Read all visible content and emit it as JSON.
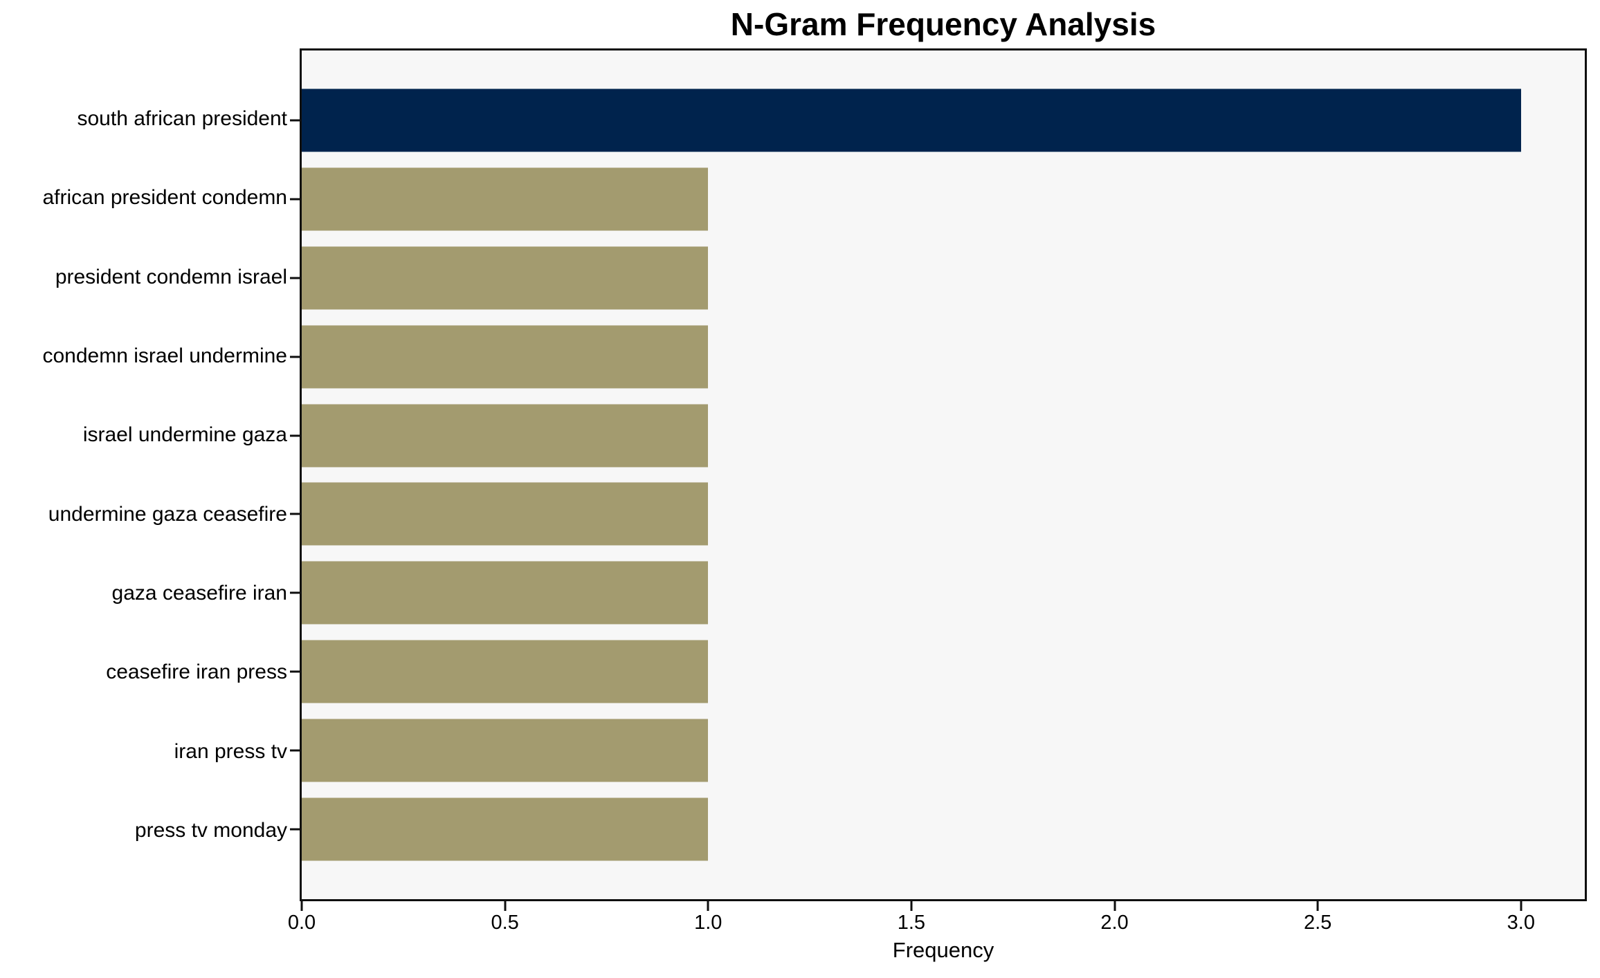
{
  "title": "N-Gram Frequency Analysis",
  "chart_data": {
    "type": "bar",
    "orientation": "horizontal",
    "title": "N-Gram Frequency Analysis",
    "categories": [
      "south african president",
      "african president condemn",
      "president condemn israel",
      "condemn israel undermine",
      "israel undermine gaza",
      "undermine gaza ceasefire",
      "gaza ceasefire iran",
      "ceasefire iran press",
      "iran press tv",
      "press tv monday"
    ],
    "values": [
      3,
      1,
      1,
      1,
      1,
      1,
      1,
      1,
      1,
      1
    ],
    "xlabel": "Frequency",
    "ylabel": "",
    "xlim": [
      0,
      3.157
    ],
    "x_ticks": [
      {
        "value": 0.0,
        "label": "0.0"
      },
      {
        "value": 0.5,
        "label": "0.5"
      },
      {
        "value": 1.0,
        "label": "1.0"
      },
      {
        "value": 1.5,
        "label": "1.5"
      },
      {
        "value": 2.0,
        "label": "2.0"
      },
      {
        "value": 2.5,
        "label": "2.5"
      },
      {
        "value": 3.0,
        "label": "3.0"
      }
    ],
    "grid": false,
    "legend": "none",
    "bar_colors": [
      "#00234d",
      "#a39b6f",
      "#a39b6f",
      "#a39b6f",
      "#a39b6f",
      "#a39b6f",
      "#a39b6f",
      "#a39b6f",
      "#a39b6f",
      "#a39b6f"
    ],
    "colors": {
      "highlight_bar": "#00234d",
      "default_bar": "#a39b6f",
      "plot_background": "#f7f7f7",
      "figure_background": "#ffffff",
      "axis": "#0f0f0f",
      "text": "#000000"
    }
  }
}
